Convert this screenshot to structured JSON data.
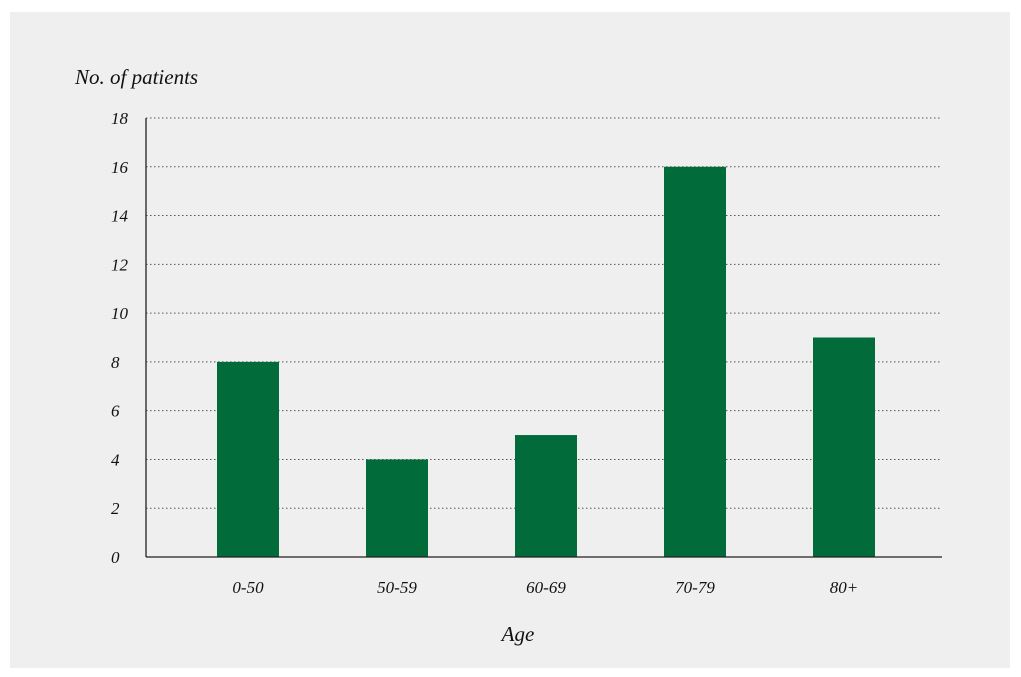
{
  "chart_data": {
    "type": "bar",
    "title": "",
    "ylabel": "No. of patients",
    "xlabel": "Age",
    "categories": [
      "0-50",
      "50-59",
      "60-69",
      "70-79",
      "80+"
    ],
    "values": [
      8,
      4,
      5,
      16,
      9
    ],
    "ylim": [
      0,
      18
    ],
    "yticks": [
      0,
      2,
      4,
      6,
      8,
      10,
      12,
      14,
      16,
      18
    ],
    "grid": true,
    "grid_style": "dotted",
    "legend": "none",
    "bar_color": "#026b3a",
    "background_color": "#efefef"
  }
}
